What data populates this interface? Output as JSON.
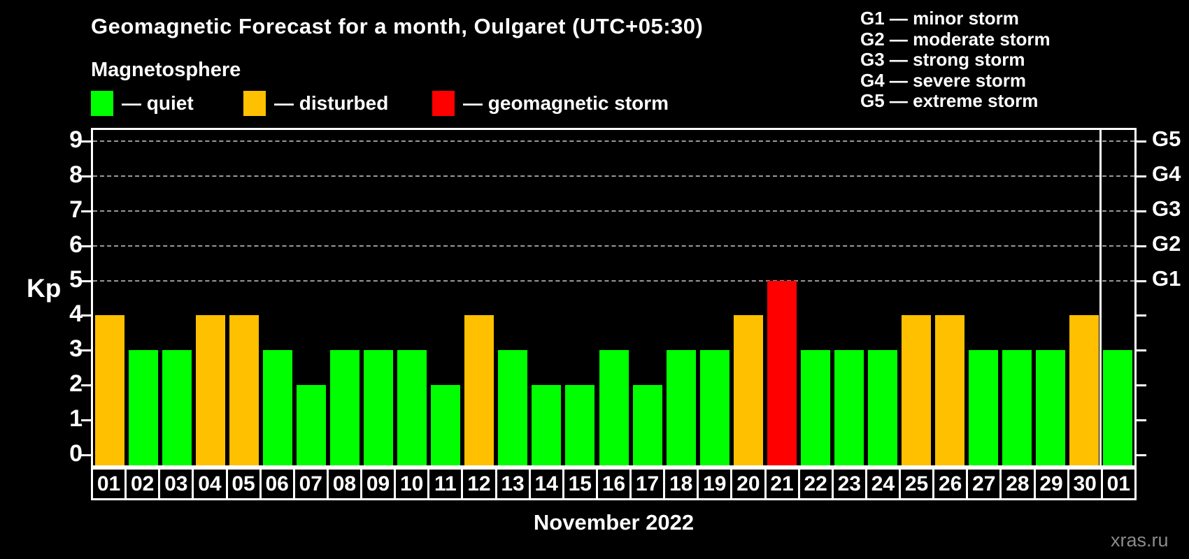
{
  "header": {
    "title": "Geomagnetic Forecast for a month, Oulgaret (UTC+05:30)",
    "subtitle": "Magnetosphere"
  },
  "legend": {
    "items": [
      {
        "name": "quiet",
        "label": "— quiet",
        "color": "#00ff00"
      },
      {
        "name": "disturbed",
        "label": "— disturbed",
        "color": "#ffc000"
      },
      {
        "name": "storm",
        "label": "— geomagnetic storm",
        "color": "#ff0000"
      }
    ]
  },
  "g_legend": {
    "lines": [
      "G1 — minor storm",
      "G2 — moderate storm",
      "G3 — strong storm",
      "G4 — severe storm",
      "G5 — extreme storm"
    ]
  },
  "colors": {
    "quiet": "#00ff00",
    "disturbed": "#ffc000",
    "storm": "#ff0000",
    "background": "#000000",
    "axis": "#ffffff",
    "grid": "#9a9a9a",
    "watermark": "#8b8b8b"
  },
  "chart_data": {
    "type": "bar",
    "title": "Geomagnetic Forecast for a month, Oulgaret (UTC+05:30)",
    "xlabel": "November 2022",
    "ylabel": "Kp",
    "ylim": [
      0,
      9
    ],
    "grid": "dashed horizontal lines at Kp 5-9 only",
    "y_ticks": [
      0,
      1,
      2,
      3,
      4,
      5,
      6,
      7,
      8,
      9
    ],
    "right_axis_labels": [
      {
        "label": "G1",
        "kp": 5
      },
      {
        "label": "G2",
        "kp": 6
      },
      {
        "label": "G3",
        "kp": 7
      },
      {
        "label": "G4",
        "kp": 8
      },
      {
        "label": "G5",
        "kp": 9
      }
    ],
    "categories": [
      "01",
      "02",
      "03",
      "04",
      "05",
      "06",
      "07",
      "08",
      "09",
      "10",
      "11",
      "12",
      "13",
      "14",
      "15",
      "16",
      "17",
      "18",
      "19",
      "20",
      "21",
      "22",
      "23",
      "24",
      "25",
      "26",
      "27",
      "28",
      "29",
      "30",
      "01"
    ],
    "values": [
      4,
      3,
      3,
      4,
      4,
      3,
      2,
      3,
      3,
      3,
      2,
      4,
      3,
      2,
      2,
      3,
      2,
      3,
      3,
      4,
      5,
      3,
      3,
      3,
      4,
      4,
      3,
      3,
      3,
      4,
      3
    ],
    "statuses": [
      "disturbed",
      "quiet",
      "quiet",
      "disturbed",
      "disturbed",
      "quiet",
      "quiet",
      "quiet",
      "quiet",
      "quiet",
      "quiet",
      "disturbed",
      "quiet",
      "quiet",
      "quiet",
      "quiet",
      "quiet",
      "quiet",
      "quiet",
      "disturbed",
      "storm",
      "quiet",
      "quiet",
      "quiet",
      "disturbed",
      "disturbed",
      "quiet",
      "quiet",
      "quiet",
      "disturbed",
      "quiet"
    ],
    "month_separator_after_index": 29,
    "note": "last bar is 01 of next month (December)"
  },
  "footer": {
    "month_label": "November 2022",
    "watermark": "xras.ru"
  }
}
